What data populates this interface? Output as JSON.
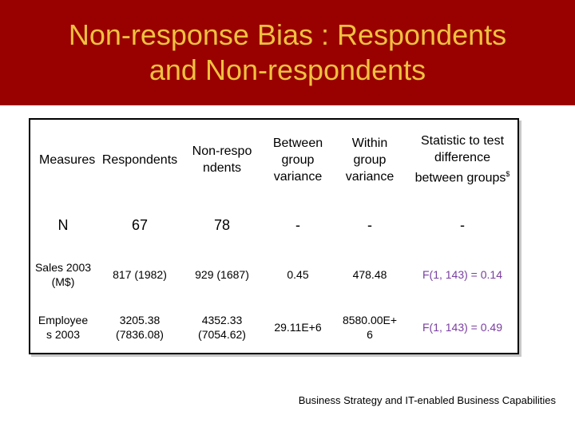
{
  "slide": {
    "title_line1": "Non-response Bias : Respondents",
    "title_line2": "and Non-respondents",
    "footer": "Business Strategy and IT-enabled Business Capabilities"
  },
  "table": {
    "headers": {
      "measures": "Measures",
      "respondents": "Respondents",
      "non_respondents": "Non-respondents",
      "between": "Between group variance",
      "within": "Within group variance",
      "statistic": "Statistic to test difference between groups",
      "statistic_sup": "$"
    },
    "rows": [
      {
        "measure": "N",
        "respondents": "67",
        "non_respondents": "78",
        "between": "-",
        "within": "-",
        "statistic": "-"
      },
      {
        "measure": "Sales 2003 (M$)",
        "respondents": "817 (1982)",
        "non_respondents": "929 (1687)",
        "between": "0.45",
        "within": "478.48",
        "statistic": "F(1, 143) = 0.14"
      },
      {
        "measure": "Employees 2003",
        "respondents": "3205.38 (7836.08)",
        "non_respondents": "4352.33 (7054.62)",
        "between": "29.11E+6",
        "within": "8580.00E+6",
        "statistic": "F(1, 143) = 0.49"
      }
    ]
  },
  "colors": {
    "title_bar": "#990000",
    "title_text": "#f0c040",
    "statistic_text": "#7a3ea0"
  }
}
